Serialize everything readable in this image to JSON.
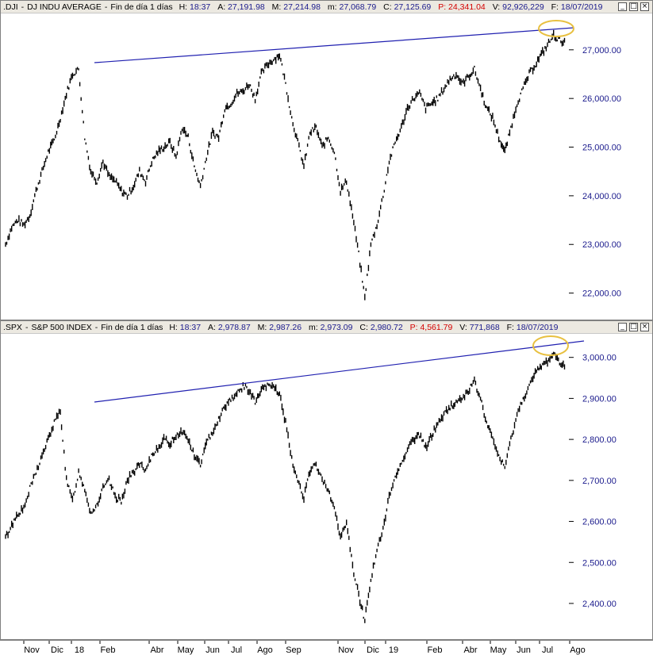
{
  "top_panel": {
    "title": {
      "symbol": ".DJI",
      "name": "DJ INDU AVERAGE",
      "period": "Fin de día 1 días",
      "h_label": "H:",
      "h_value": "18:37",
      "a_label": "A:",
      "a_value": "27,191.98",
      "m_label": "M:",
      "m_value": "27,214.98",
      "mn_label": "m:",
      "mn_value": "27,068.79",
      "c_label": "C:",
      "c_value": "27,125.69",
      "p_label": "P:",
      "p_value": "24,341.04",
      "v_label": "V:",
      "v_value": "92,926,229",
      "f_label": "F:",
      "f_value": "18/07/2019"
    },
    "price_labels": [
      "27,000.00",
      "26,000.00",
      "25,000.00",
      "24,000.00",
      "23,000.00",
      "22,000.00"
    ]
  },
  "bottom_panel": {
    "title": {
      "symbol": ".SPX",
      "name": "S&P 500 INDEX",
      "period": "Fin de día 1 días",
      "h_label": "H:",
      "h_value": "18:37",
      "a_label": "A:",
      "a_value": "2,978.87",
      "m_label": "M:",
      "m_value": "2,987.26",
      "mn_label": "m:",
      "mn_value": "2,973.09",
      "c_label": "C:",
      "c_value": "2,980.72",
      "p_label": "P:",
      "p_value": "4,561.79",
      "v_label": "V:",
      "v_value": "771,868",
      "f_label": "F:",
      "f_value": "18/07/2019"
    },
    "price_labels": [
      "3,000.00",
      "2,900.00",
      "2,800.00",
      "2,700.00",
      "2,600.00",
      "2,500.00",
      "2,400.00"
    ]
  },
  "window_buttons": [
    "_",
    "□",
    "×"
  ],
  "time_axis": [
    "Nov",
    "Dic",
    "18",
    "Feb",
    "Abr",
    "May",
    "Jun",
    "Jul",
    "Ago",
    "Sep",
    "Nov",
    "Dic",
    "19",
    "Feb",
    "Abr",
    "May",
    "Jun",
    "Jul",
    "Ago"
  ],
  "colors": {
    "price_text": "#1a1a8c",
    "trendline": "#2020b0",
    "highlight": "#e8c040",
    "bars": "#000000",
    "red_value": "#d40000"
  },
  "chart_data": [
    {
      "type": "line",
      "series": [
        {
          "values": [
            23000,
            23350,
            23500,
            23400,
            23600,
            24100,
            24500,
            24900,
            25150,
            25600,
            26100,
            26500,
            26600,
            25200,
            24500,
            24300,
            24700,
            24400,
            24300,
            24100,
            24000,
            24200,
            24500,
            24300,
            24700,
            24900,
            25000,
            25100,
            24800,
            25400,
            25200,
            24600,
            24200,
            24800,
            25300,
            25200,
            25800,
            25900,
            26100,
            26150,
            26300,
            26000,
            26500,
            26700,
            26800,
            26900,
            26300,
            25600,
            25100,
            24600,
            25300,
            25400,
            25000,
            25200,
            24900,
            24100,
            24300,
            23600,
            22800,
            21900,
            23000,
            23400,
            24000,
            24700,
            25100,
            25400,
            25800,
            26000,
            26100,
            25800,
            25900,
            26000,
            26200,
            26400,
            26500,
            26300,
            26450,
            26600,
            26200,
            25800,
            25600,
            25200,
            24900,
            25400,
            25900,
            26200,
            26500,
            26700,
            26900,
            27100,
            27300,
            27200,
            27150
          ]
        }
      ],
      "ylim": [
        21700,
        27600
      ]
    },
    {
      "type": "line",
      "series": [
        {
          "values": [
            2560,
            2590,
            2620,
            2630,
            2680,
            2720,
            2760,
            2800,
            2840,
            2870,
            2700,
            2650,
            2720,
            2680,
            2620,
            2640,
            2680,
            2700,
            2660,
            2650,
            2700,
            2720,
            2740,
            2720,
            2760,
            2780,
            2800,
            2790,
            2810,
            2820,
            2800,
            2760,
            2740,
            2790,
            2820,
            2850,
            2880,
            2900,
            2910,
            2930,
            2920,
            2890,
            2920,
            2930,
            2930,
            2910,
            2840,
            2750,
            2700,
            2660,
            2720,
            2740,
            2700,
            2680,
            2630,
            2560,
            2600,
            2490,
            2420,
            2360,
            2460,
            2530,
            2580,
            2660,
            2710,
            2740,
            2780,
            2800,
            2810,
            2780,
            2810,
            2840,
            2860,
            2880,
            2890,
            2900,
            2920,
            2940,
            2900,
            2840,
            2800,
            2760,
            2730,
            2800,
            2860,
            2900,
            2930,
            2960,
            2980,
            2990,
            3010,
            2990,
            2980
          ]
        }
      ],
      "ylim": [
        2340,
        3040
      ]
    }
  ]
}
